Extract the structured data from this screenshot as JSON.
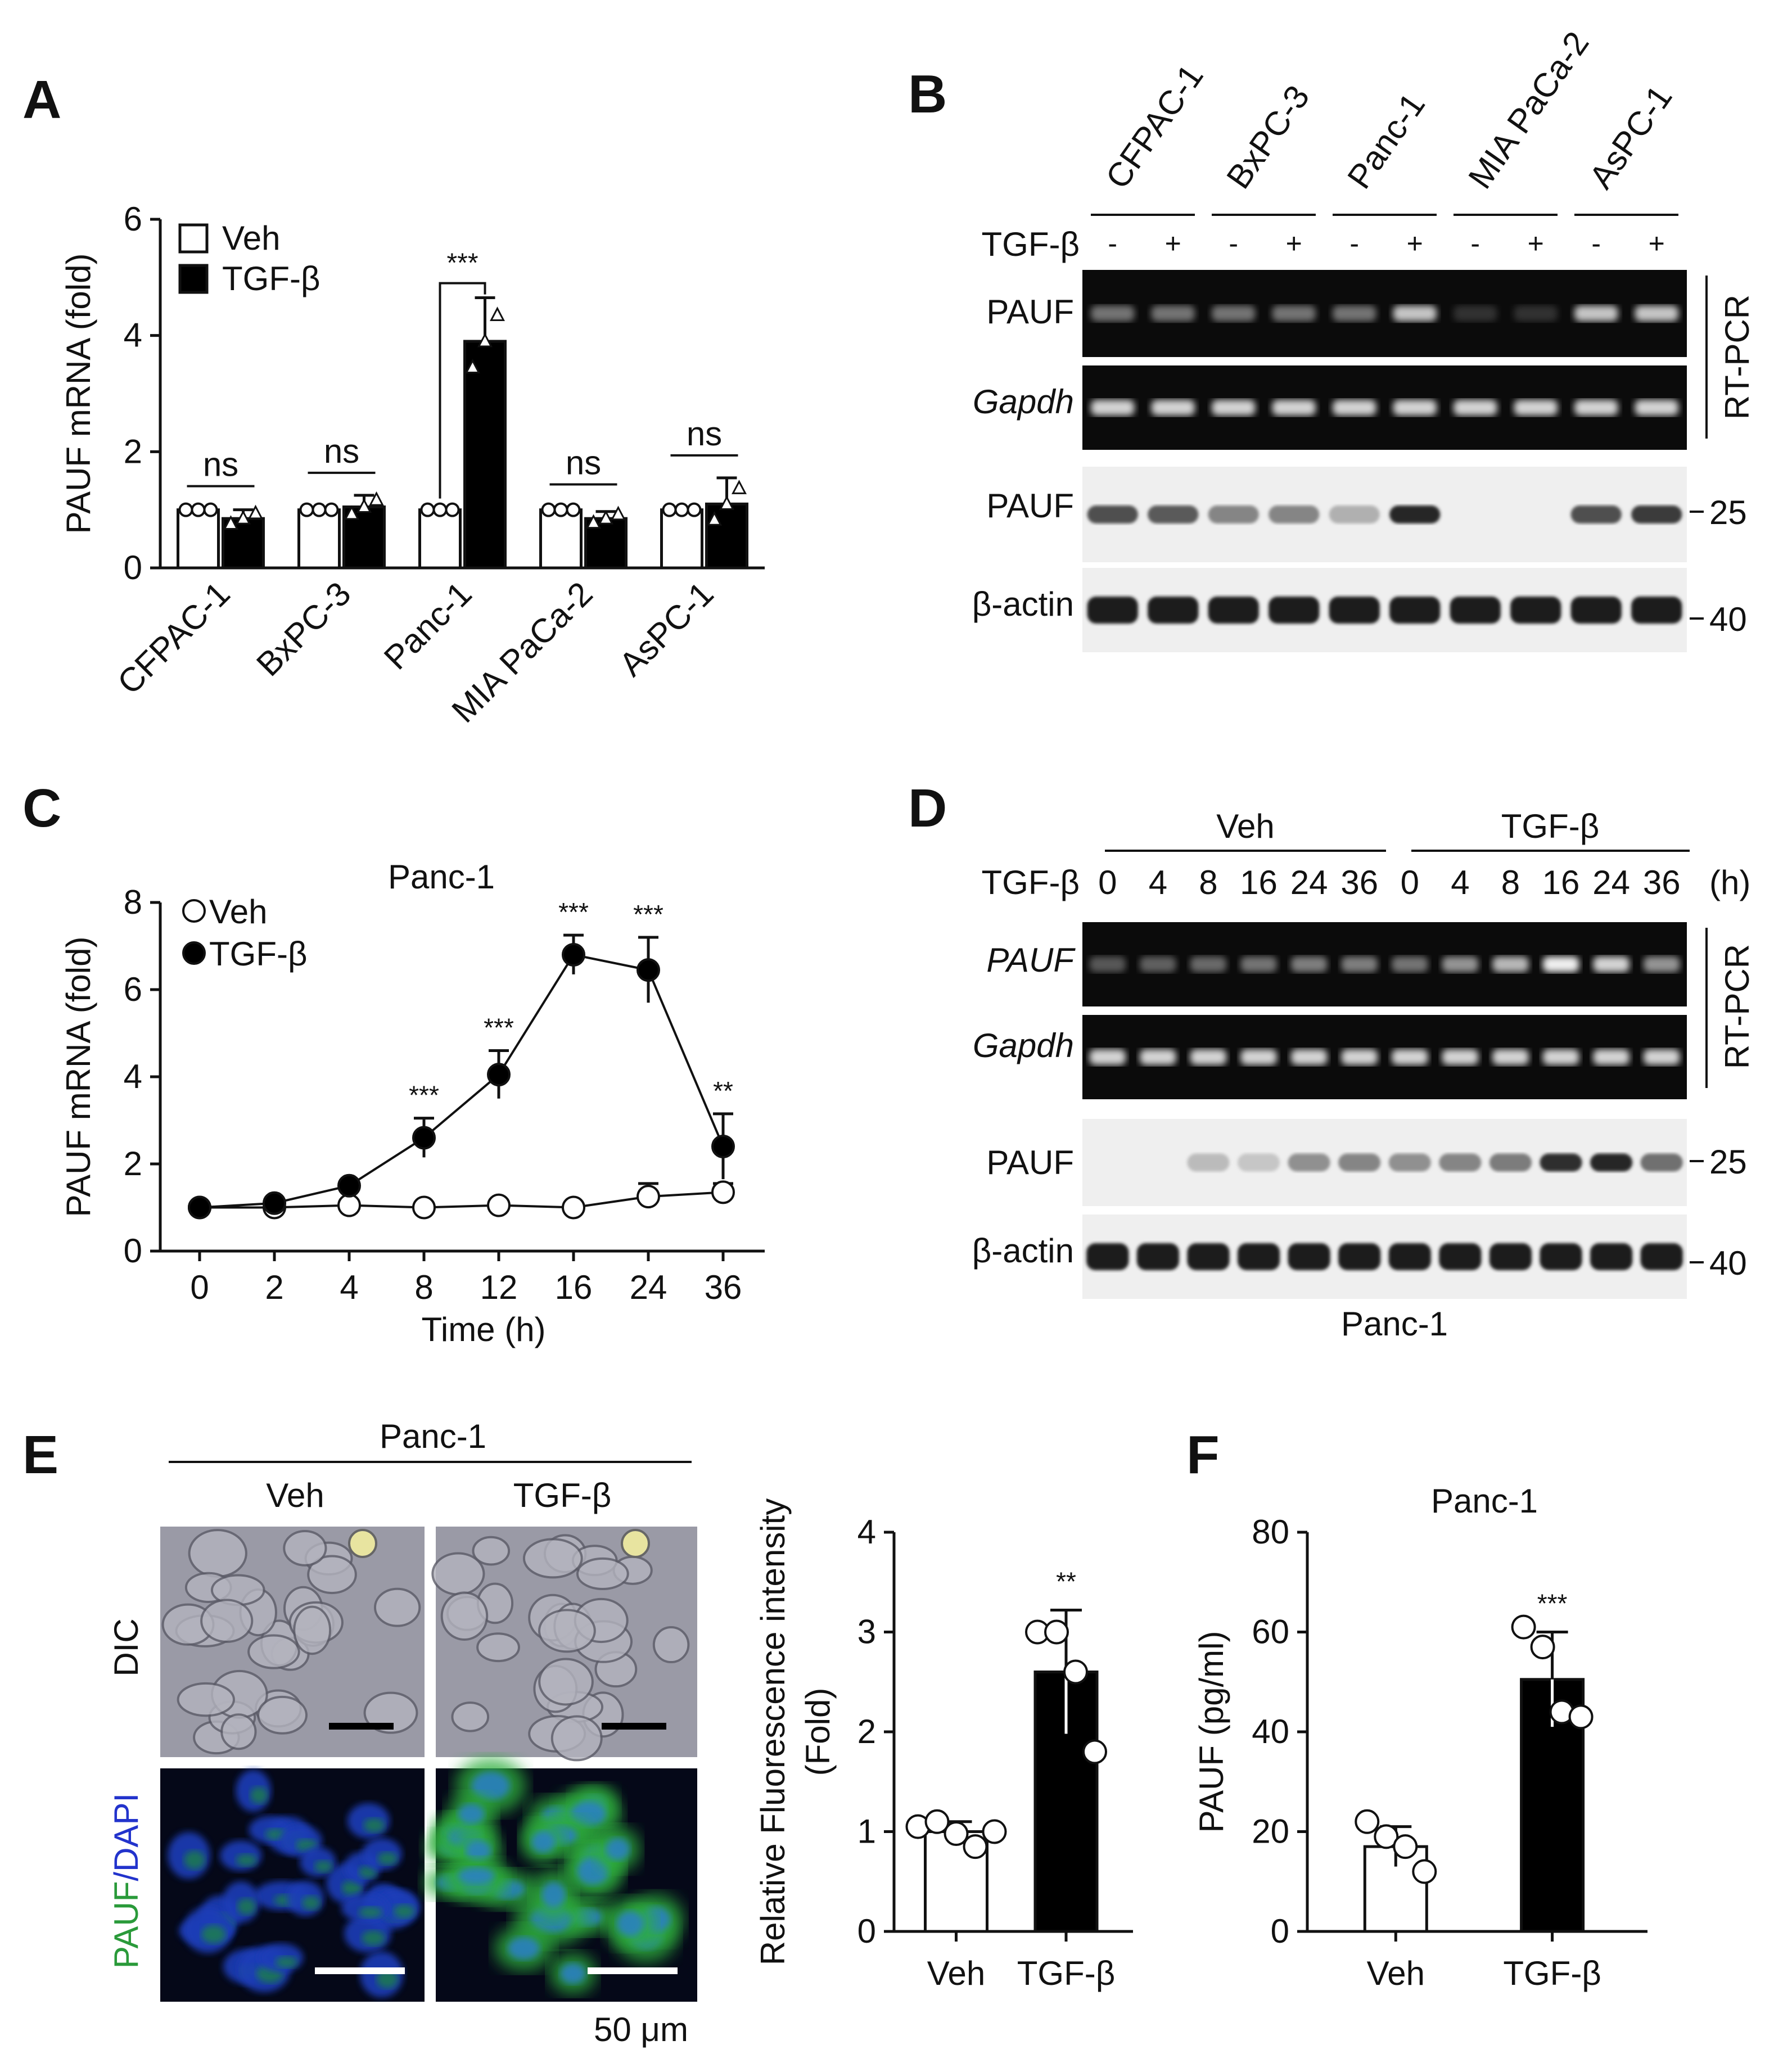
{
  "panels": {
    "A": "A",
    "B": "B",
    "C": "C",
    "D": "D",
    "E": "E",
    "F": "F"
  },
  "colors": {
    "veh": "#ffffff",
    "tgf": "#000000",
    "stroke": "#111111",
    "gel": "#0b0b0b",
    "blot": "#efefef"
  },
  "chart_data": [
    {
      "panel": "A",
      "type": "bar",
      "ylabel_main": "PAUF",
      "ylabel_rest": "mRNA (fold)",
      "ylim": [
        0,
        6
      ],
      "yticks": [
        0,
        2,
        4,
        6
      ],
      "categories": [
        "CFPAC-1",
        "BxPC-3",
        "Panc-1",
        "MIA PaCa-2",
        "AsPC-1"
      ],
      "series": [
        {
          "name": "Veh",
          "values": [
            1.0,
            1.0,
            1.0,
            1.0,
            1.0
          ],
          "errors": [
            0.02,
            0.02,
            0.02,
            0.05,
            0.02
          ]
        },
        {
          "name": "TGF-β",
          "values": [
            0.85,
            1.05,
            3.9,
            0.85,
            1.1
          ],
          "errors": [
            0.15,
            0.2,
            0.75,
            0.12,
            0.45
          ]
        }
      ],
      "significance": [
        "ns",
        "ns",
        "***",
        "ns",
        "ns"
      ],
      "legend": [
        "Veh",
        "TGF-β"
      ]
    },
    {
      "panel": "C",
      "type": "line",
      "title": "Panc-1",
      "xlabel": "Time (h)",
      "ylabel_main": "PAUF",
      "ylabel_rest": "mRNA (fold)",
      "ylim": [
        0,
        8
      ],
      "yticks": [
        0,
        2,
        4,
        6,
        8
      ],
      "x": [
        "0",
        "2",
        "4",
        "8",
        "12",
        "16",
        "24",
        "36"
      ],
      "series": [
        {
          "name": "Veh",
          "values": [
            1.0,
            1.0,
            1.05,
            1.0,
            1.05,
            1.0,
            1.25,
            1.35
          ],
          "errors": [
            0.05,
            0.05,
            0.05,
            0.05,
            0.05,
            0.05,
            0.3,
            0.2
          ]
        },
        {
          "name": "TGF-β",
          "values": [
            1.0,
            1.1,
            1.5,
            2.6,
            4.05,
            6.8,
            6.45,
            2.4
          ],
          "errors": [
            0.05,
            0.1,
            0.1,
            0.45,
            0.55,
            0.45,
            0.75,
            0.75
          ]
        }
      ],
      "significance": [
        "",
        "",
        "",
        "***",
        "***",
        "***",
        "***",
        "**"
      ],
      "legend": [
        "Veh",
        "TGF-β"
      ]
    },
    {
      "panel": "E",
      "type": "bar",
      "ylabel_line1": "Relative Fluorescence intensity",
      "ylabel_line2": "(Fold)",
      "ylim": [
        0,
        4
      ],
      "yticks": [
        0,
        1,
        2,
        3,
        4
      ],
      "categories": [
        "Veh",
        "TGF-β"
      ],
      "values": [
        1.0,
        2.6
      ],
      "errors": [
        0.1,
        0.62
      ],
      "points": [
        [
          1.05,
          1.1,
          0.98,
          0.85,
          1.0
        ],
        [
          3.0,
          3.0,
          2.6,
          1.8
        ]
      ],
      "significance": [
        "",
        "**"
      ]
    },
    {
      "panel": "F",
      "type": "bar",
      "title": "Panc-1",
      "ylabel": "PAUF (pg/ml)",
      "ylim": [
        0,
        80
      ],
      "yticks": [
        0,
        20,
        40,
        60,
        80
      ],
      "categories": [
        "Veh",
        "TGF-β"
      ],
      "values": [
        17,
        50.5
      ],
      "errors": [
        4,
        9.5
      ],
      "points": [
        [
          22,
          19,
          17,
          12
        ],
        [
          61,
          57,
          44,
          43
        ]
      ],
      "significance": [
        "",
        "***"
      ]
    }
  ],
  "panelB": {
    "cell_lines": [
      "CFPAC-1",
      "BxPC-3",
      "Panc-1",
      "MIA PaCa-2",
      "AsPC-1"
    ],
    "tgf_label": "TGF-β",
    "minus": "-",
    "plus": "+",
    "rows": [
      "PAUF",
      "Gapdh",
      "PAUF",
      "β-actin"
    ],
    "side_label": "RT-PCR",
    "markers": [
      "25",
      "40"
    ],
    "pcr_pauf": [
      0.45,
      0.45,
      0.45,
      0.45,
      0.45,
      0.8,
      0.05,
      0.05,
      0.8,
      0.8
    ],
    "wb_pauf": [
      0.7,
      0.65,
      0.45,
      0.45,
      0.25,
      0.9,
      0.0,
      0.0,
      0.7,
      0.8
    ]
  },
  "panelD": {
    "groups": [
      "Veh",
      "TGF-β"
    ],
    "tgf_label": "TGF-β",
    "times": [
      "0",
      "4",
      "8",
      "16",
      "24",
      "36",
      "0",
      "4",
      "8",
      "16",
      "24",
      "36"
    ],
    "unit": "(h)",
    "rows": [
      "PAUF",
      "Gapdh",
      "PAUF",
      "β-actin"
    ],
    "side_label": "RT-PCR",
    "markers": [
      "25",
      "40"
    ],
    "caption": "Panc-1",
    "pcr_pauf": [
      0.3,
      0.35,
      0.4,
      0.45,
      0.5,
      0.5,
      0.45,
      0.6,
      0.75,
      0.95,
      0.85,
      0.6
    ],
    "wb_pauf": [
      0.0,
      0.0,
      0.2,
      0.15,
      0.4,
      0.45,
      0.4,
      0.45,
      0.5,
      0.85,
      0.9,
      0.55
    ]
  },
  "panelE": {
    "header": "Panc-1",
    "cols": [
      "Veh",
      "TGF-β"
    ],
    "row_dic": "DIC",
    "row_fluor_a": "PAUF",
    "row_fluor_b": "/DAPI",
    "scale": "50 μm"
  }
}
